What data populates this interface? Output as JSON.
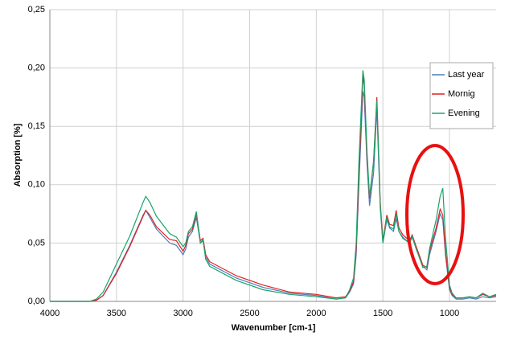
{
  "chart_data": {
    "type": "line",
    "x_label": "Wavenumber [cm-1]",
    "y_label": "Absorption [%]",
    "x": [
      4000,
      3700,
      3650,
      3600,
      3500,
      3400,
      3300,
      3280,
      3250,
      3200,
      3100,
      3050,
      3000,
      2980,
      2960,
      2930,
      2900,
      2870,
      2850,
      2830,
      2800,
      2600,
      2400,
      2200,
      2000,
      1850,
      1780,
      1750,
      1720,
      1700,
      1680,
      1650,
      1640,
      1620,
      1600,
      1570,
      1545,
      1520,
      1500,
      1470,
      1450,
      1420,
      1400,
      1380,
      1350,
      1300,
      1280,
      1250,
      1200,
      1170,
      1150,
      1100,
      1070,
      1050,
      1030,
      1000,
      980,
      950,
      900,
      850,
      800,
      750,
      700,
      650
    ],
    "series": [
      {
        "name": "Last year",
        "color": "#4a7ebb",
        "values": [
          0,
          0,
          0.001,
          0.005,
          0.025,
          0.048,
          0.074,
          0.078,
          0.072,
          0.062,
          0.05,
          0.048,
          0.04,
          0.045,
          0.055,
          0.06,
          0.072,
          0.05,
          0.052,
          0.038,
          0.032,
          0.02,
          0.012,
          0.007,
          0.005,
          0.002,
          0.003,
          0.008,
          0.015,
          0.04,
          0.1,
          0.18,
          0.175,
          0.12,
          0.082,
          0.11,
          0.165,
          0.08,
          0.05,
          0.07,
          0.063,
          0.06,
          0.071,
          0.06,
          0.055,
          0.05,
          0.055,
          0.045,
          0.03,
          0.027,
          0.04,
          0.06,
          0.075,
          0.07,
          0.04,
          0.01,
          0.005,
          0.002,
          0.002,
          0.003,
          0.002,
          0.004,
          0.003,
          0.004
        ]
      },
      {
        "name": "Mornig",
        "color": "#e02020",
        "values": [
          0,
          0,
          0.001,
          0.005,
          0.024,
          0.047,
          0.073,
          0.078,
          0.074,
          0.064,
          0.053,
          0.052,
          0.043,
          0.048,
          0.058,
          0.062,
          0.075,
          0.052,
          0.054,
          0.04,
          0.034,
          0.022,
          0.014,
          0.008,
          0.006,
          0.003,
          0.004,
          0.009,
          0.017,
          0.045,
          0.11,
          0.193,
          0.185,
          0.125,
          0.088,
          0.12,
          0.175,
          0.085,
          0.052,
          0.074,
          0.066,
          0.065,
          0.078,
          0.063,
          0.057,
          0.052,
          0.057,
          0.047,
          0.031,
          0.029,
          0.043,
          0.063,
          0.079,
          0.074,
          0.043,
          0.012,
          0.006,
          0.003,
          0.003,
          0.004,
          0.003,
          0.006,
          0.004,
          0.005
        ]
      },
      {
        "name": "Evening",
        "color": "#1aa46a",
        "values": [
          0,
          0,
          0.002,
          0.008,
          0.032,
          0.056,
          0.085,
          0.09,
          0.085,
          0.073,
          0.058,
          0.055,
          0.047,
          0.05,
          0.06,
          0.064,
          0.077,
          0.05,
          0.053,
          0.036,
          0.03,
          0.018,
          0.01,
          0.006,
          0.004,
          0.002,
          0.003,
          0.01,
          0.02,
          0.05,
          0.12,
          0.198,
          0.19,
          0.13,
          0.09,
          0.12,
          0.172,
          0.082,
          0.05,
          0.072,
          0.064,
          0.062,
          0.075,
          0.06,
          0.054,
          0.05,
          0.056,
          0.045,
          0.029,
          0.03,
          0.045,
          0.07,
          0.09,
          0.097,
          0.055,
          0.014,
          0.007,
          0.003,
          0.003,
          0.004,
          0.003,
          0.007,
          0.004,
          0.006
        ]
      }
    ],
    "xlim": [
      4000,
      650
    ],
    "xticks": [
      4000,
      3500,
      3000,
      2500,
      2000,
      1500,
      1000
    ],
    "ylim": [
      0,
      0.25
    ],
    "yticks": [
      {
        "value": 0,
        "label": "0,00"
      },
      {
        "value": 0.05,
        "label": "0,05"
      },
      {
        "value": 0.1,
        "label": "0,10"
      },
      {
        "value": 0.15,
        "label": "0,15"
      },
      {
        "value": 0.2,
        "label": "0,20"
      },
      {
        "value": 0.25,
        "label": "0,25"
      }
    ],
    "grid": true,
    "legend": "upper right"
  }
}
